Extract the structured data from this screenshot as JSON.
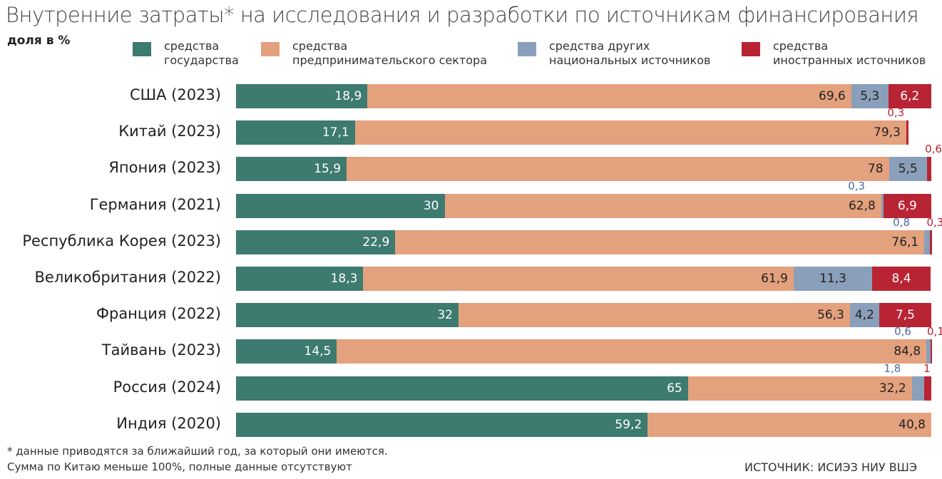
{
  "title": "Внутренние затраты* на исследования и разработки по источникам финансирования",
  "chart_data": {
    "type": "bar",
    "orientation": "horizontal",
    "stacked": true,
    "unit_label": "доля в %",
    "xlim": [
      0,
      100
    ],
    "grid": false,
    "legend_placement": "top",
    "categories": [
      "США (2023)",
      "Китай (2023)",
      "Япония (2023)",
      "Германия (2021)",
      "Республика Корея (2023)",
      "Великобритания (2022)",
      "Франция (2022)",
      "Тайвань (2023)",
      "Россия (2024)",
      "Индия (2020)"
    ],
    "series": [
      {
        "name": "средства\nгосударства",
        "color": "#3d7a6f",
        "values": [
          18.9,
          17.1,
          15.9,
          30,
          22.9,
          18.3,
          32,
          14.5,
          65,
          59.2
        ]
      },
      {
        "name": "средства\nпредпринимательского сектора",
        "color": "#e4a17d",
        "values": [
          69.6,
          79.3,
          78,
          62.8,
          76.1,
          61.9,
          56.3,
          84.8,
          32.2,
          40.8
        ]
      },
      {
        "name": "средства других\nнациональных источников",
        "color": "#8a9fba",
        "values": [
          5.3,
          null,
          5.5,
          0.3,
          0.8,
          11.3,
          4.2,
          0.6,
          1.8,
          null
        ]
      },
      {
        "name": "средства\nиностранных источников",
        "color": "#b82434",
        "values": [
          6.2,
          0.3,
          0.6,
          6.9,
          0.3,
          8.4,
          7.5,
          0.1,
          1,
          null
        ]
      }
    ]
  },
  "footnotes": {
    "note1": "* данные приводятся за ближайший год, за который они имеются.",
    "note2": "Сумма по Китаю меньше 100%, полные данные отсутствуют",
    "source": "ИСТОЧНИК: ИСИЭЗ НИУ ВШЭ"
  }
}
